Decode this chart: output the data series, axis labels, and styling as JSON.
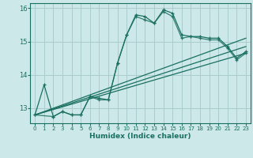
{
  "title": "",
  "xlabel": "Humidex (Indice chaleur)",
  "background_color": "#cce8e8",
  "grid_color": "#aacccc",
  "line_color": "#1a7060",
  "xlim": [
    -0.5,
    23.5
  ],
  "ylim": [
    12.55,
    16.15
  ],
  "yticks": [
    13,
    14,
    15,
    16
  ],
  "xticks": [
    0,
    1,
    2,
    3,
    4,
    5,
    6,
    7,
    8,
    9,
    10,
    11,
    12,
    13,
    14,
    15,
    16,
    17,
    18,
    19,
    20,
    21,
    22,
    23
  ],
  "series_main": {
    "x": [
      0,
      1,
      2,
      3,
      4,
      5,
      6,
      7,
      8,
      9,
      10,
      11,
      12,
      13,
      14,
      15,
      16,
      17,
      18,
      19,
      20,
      21,
      22,
      23
    ],
    "y": [
      12.8,
      13.7,
      12.75,
      12.9,
      12.8,
      12.8,
      13.35,
      13.3,
      13.25,
      14.35,
      15.2,
      15.8,
      15.75,
      15.55,
      15.95,
      15.85,
      15.2,
      15.15,
      15.15,
      15.1,
      15.1,
      14.85,
      14.5,
      14.7
    ]
  },
  "series2": {
    "x": [
      0,
      2,
      3,
      4,
      5,
      6,
      7,
      8,
      9,
      10,
      11,
      12,
      13,
      14,
      15,
      16,
      17,
      18,
      19,
      20,
      21,
      22,
      23
    ],
    "y": [
      12.8,
      12.75,
      12.9,
      12.8,
      12.8,
      13.35,
      13.25,
      13.25,
      14.35,
      15.2,
      15.75,
      15.65,
      15.55,
      15.9,
      15.75,
      15.1,
      15.15,
      15.1,
      15.05,
      15.05,
      14.8,
      14.45,
      14.65
    ]
  },
  "line1": {
    "x": [
      0,
      23
    ],
    "y": [
      12.8,
      15.1
    ]
  },
  "line2": {
    "x": [
      0,
      23
    ],
    "y": [
      12.8,
      14.85
    ]
  },
  "line3": {
    "x": [
      0,
      23
    ],
    "y": [
      12.8,
      14.65
    ]
  }
}
